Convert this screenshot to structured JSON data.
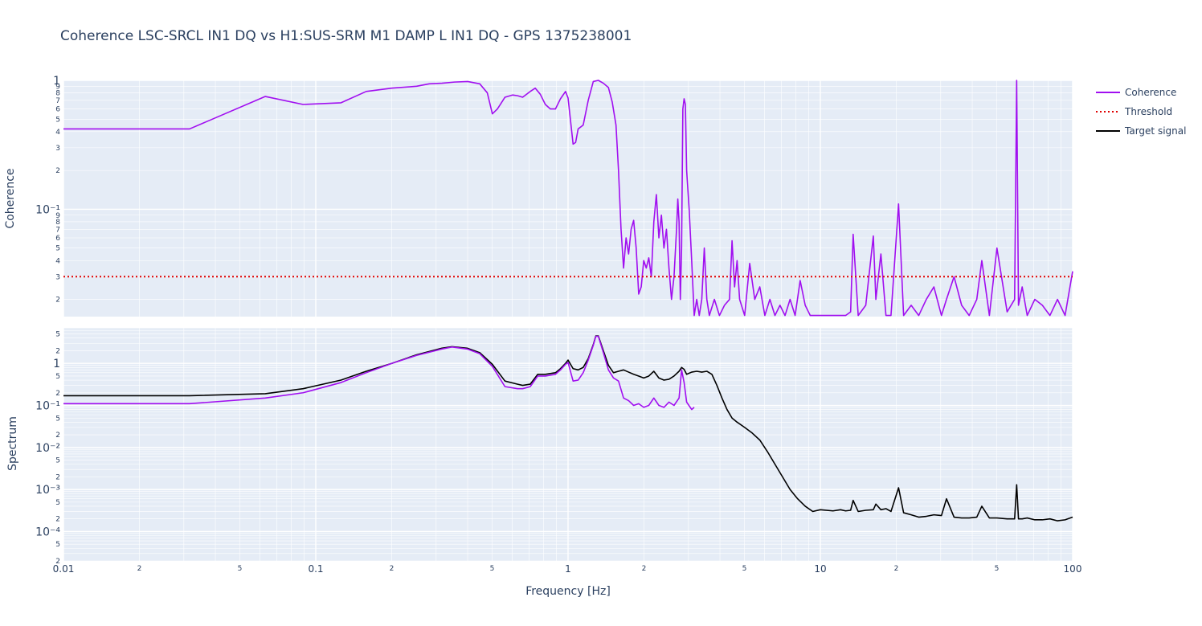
{
  "chart_data": {
    "type": "line",
    "title": "Coherence LSC-SRCL IN1 DQ vs H1:SUS-SRM M1 DAMP L IN1 DQ - GPS 1375238001",
    "xlabel": "Frequency [Hz]",
    "xscale": "log",
    "xlim": [
      0.01,
      100
    ],
    "x_ticks": [
      "0.01",
      "2",
      "5",
      "0.1",
      "2",
      "5",
      "1",
      "2",
      "5",
      "10",
      "2",
      "5",
      "100"
    ],
    "grid": true,
    "legend": {
      "position": "top-right",
      "entries": [
        {
          "name": "Coherence",
          "color": "#a10ff0",
          "style": "solid"
        },
        {
          "name": "Threshold",
          "color": "#e00000",
          "style": "dotted"
        },
        {
          "name": "Target signal",
          "color": "#000000",
          "style": "solid"
        }
      ]
    },
    "panels": [
      {
        "ylabel": "Coherence",
        "yscale": "log",
        "ylim": [
          0.0147,
          1.0
        ],
        "y_ticks": [
          "1",
          "9",
          "8",
          "7",
          "6",
          "5",
          "4",
          "3",
          "2",
          "10⁻¹",
          "9",
          "8",
          "7",
          "6",
          "5",
          "4",
          "3",
          "2"
        ],
        "series": [
          {
            "name": "Coherence",
            "color": "#a10ff0",
            "x": [
              0.01,
              0.0316,
              0.0631,
              0.0891,
              0.1259,
              0.1585,
              0.2,
              0.251,
              0.2818,
              0.3162,
              0.3548,
              0.4,
              0.4467,
              0.4786,
              0.5012,
              0.5248,
              0.5623,
              0.6026,
              0.631,
              0.6607,
              0.7079,
              0.7413,
              0.7762,
              0.8128,
              0.8511,
              0.8913,
              0.9333,
              0.9772,
              1.0,
              1.0471,
              1.0715,
              1.0965,
              1.1482,
              1.2023,
              1.2589,
              1.3183,
              1.3804,
              1.4454,
              1.4962,
              1.5488,
              1.5849,
              1.6218,
              1.6596,
              1.6982,
              1.7378,
              1.7783,
              1.8197,
              1.8621,
              1.9055,
              1.9498,
              1.9953,
              2.0417,
              2.0893,
              2.138,
              2.1878,
              2.2387,
              2.2909,
              2.3442,
              2.3988,
              2.4547,
              2.5119,
              2.5704,
              2.6303,
              2.6915,
              2.7227,
              2.7542,
              2.7861,
              2.8184,
              2.851,
              2.884,
              2.9174,
              2.9512,
              3.02,
              3.0903,
              3.1623,
              3.2359,
              3.3113,
              3.3884,
              3.4674,
              3.5481,
              3.6308,
              3.8019,
              3.9811,
              4.1687,
              4.3652,
              4.4668,
              4.5709,
              4.6774,
              4.7863,
              5.0119,
              5.2481,
              5.4954,
              5.7544,
              6.0256,
              6.3096,
              6.6069,
              6.9183,
              7.2444,
              7.5858,
              7.9433,
              8.3176,
              8.7096,
              9.1201,
              9.5499,
              10.0,
              11.2202,
              12.5893,
              13.1826,
              13.4896,
              14.1254,
              15.1356,
              16.2181,
              16.5959,
              17.378,
              18.197,
              19.0546,
              20.4174,
              21.3796,
              22.9087,
              24.5471,
              26.3027,
              28.1838,
              30.1995,
              31.6228,
              33.8844,
              36.3078,
              38.9045,
              41.6869,
              43.6516,
              46.7735,
              50.1187,
              55.0,
              58.8844,
              60.0,
              61.0,
              63.0957,
              66.0693,
              70.7946,
              75.8578,
              81.2831,
              87.0964,
              93.3254,
              100.0
            ],
            "y": [
              0.42,
              0.42,
              0.75,
              0.65,
              0.67,
              0.82,
              0.87,
              0.9,
              0.94,
              0.95,
              0.97,
              0.98,
              0.94,
              0.8,
              0.55,
              0.6,
              0.74,
              0.77,
              0.76,
              0.74,
              0.82,
              0.87,
              0.78,
              0.65,
              0.6,
              0.6,
              0.72,
              0.82,
              0.73,
              0.32,
              0.33,
              0.42,
              0.45,
              0.7,
              0.98,
              1.0,
              0.95,
              0.88,
              0.68,
              0.45,
              0.2,
              0.07,
              0.035,
              0.06,
              0.045,
              0.07,
              0.082,
              0.05,
              0.022,
              0.025,
              0.04,
              0.035,
              0.042,
              0.03,
              0.08,
              0.13,
              0.06,
              0.09,
              0.05,
              0.07,
              0.035,
              0.02,
              0.03,
              0.07,
              0.12,
              0.08,
              0.02,
              0.05,
              0.6,
              0.72,
              0.65,
              0.2,
              0.1,
              0.04,
              0.015,
              0.02,
              0.015,
              0.02,
              0.05,
              0.02,
              0.015,
              0.02,
              0.015,
              0.018,
              0.02,
              0.057,
              0.025,
              0.04,
              0.02,
              0.015,
              0.038,
              0.02,
              0.025,
              0.015,
              0.02,
              0.015,
              0.018,
              0.015,
              0.02,
              0.015,
              0.028,
              0.018,
              0.015,
              0.015,
              0.015,
              0.015,
              0.015,
              0.016,
              0.064,
              0.015,
              0.018,
              0.062,
              0.02,
              0.045,
              0.015,
              0.015,
              0.11,
              0.015,
              0.018,
              0.015,
              0.02,
              0.025,
              0.015,
              0.02,
              0.03,
              0.018,
              0.015,
              0.02,
              0.04,
              0.015,
              0.05,
              0.016,
              0.02,
              1.0,
              0.018,
              0.025,
              0.015,
              0.02,
              0.018,
              0.015,
              0.02,
              0.015,
              0.033
            ]
          },
          {
            "name": "Threshold",
            "color": "#e00000",
            "x": [
              0.01,
              100
            ],
            "y": [
              0.03,
              0.03
            ]
          }
        ]
      },
      {
        "ylabel": "Spectrum",
        "yscale": "log",
        "ylim": [
          2e-05,
          7
        ],
        "y_ticks": [
          "5",
          "2",
          "1",
          "5",
          "2",
          "10⁻¹",
          "5",
          "2",
          "10⁻²",
          "5",
          "2",
          "10⁻³",
          "5",
          "2",
          "10⁻⁴",
          "5",
          "2"
        ],
        "series": [
          {
            "name": "Target signal",
            "color": "#000000",
            "x": [
              0.01,
              0.0316,
              0.0631,
              0.0891,
              0.1259,
              0.1585,
              0.2,
              0.251,
              0.3162,
              0.3467,
              0.3981,
              0.4467,
              0.5012,
              0.5623,
              0.631,
              0.6607,
              0.7079,
              0.7586,
              0.8128,
              0.8913,
              0.9333,
              0.9772,
              1.0,
              1.0471,
              1.0965,
              1.1482,
              1.2023,
              1.2589,
              1.2882,
              1.3183,
              1.3804,
              1.4454,
              1.5136,
              1.5849,
              1.6596,
              1.7378,
              1.8197,
              1.9055,
              1.9953,
              2.0893,
              2.1878,
              2.2909,
              2.3988,
              2.5119,
              2.6303,
              2.7542,
              2.8184,
              2.884,
              2.9512,
              3.0903,
              3.2359,
              3.3884,
              3.5481,
              3.7154,
              3.8905,
              4.0738,
              4.2658,
              4.4668,
              4.6774,
              5.0119,
              5.3703,
              5.7544,
              6.166,
              6.6069,
              7.0795,
              7.5858,
              8.1283,
              8.7096,
              9.3325,
              10.0,
              11.2202,
              12.0226,
              12.5893,
              13.1826,
              13.4896,
              14.1254,
              15.1356,
              16.2181,
              16.5959,
              17.378,
              18.197,
              19.0546,
              20.4174,
              21.3796,
              22.9087,
              24.5471,
              26.3027,
              28.1838,
              30.1995,
              31.6228,
              33.8844,
              36.3078,
              38.9045,
              41.6869,
              43.6516,
              46.7735,
              50.1187,
              55.0,
              58.8844,
              60.0,
              61.0,
              63.0957,
              66.0693,
              70.7946,
              75.8578,
              81.2831,
              87.0964,
              93.3254,
              100.0
            ],
            "y": [
              0.17,
              0.17,
              0.19,
              0.25,
              0.4,
              0.65,
              1.0,
              1.6,
              2.3,
              2.5,
              2.3,
              1.8,
              0.95,
              0.38,
              0.32,
              0.3,
              0.32,
              0.55,
              0.55,
              0.6,
              0.75,
              1.0,
              1.2,
              0.75,
              0.7,
              0.8,
              1.3,
              2.8,
              4.5,
              4.5,
              2.0,
              0.9,
              0.6,
              0.65,
              0.7,
              0.62,
              0.55,
              0.5,
              0.45,
              0.5,
              0.65,
              0.45,
              0.4,
              0.42,
              0.5,
              0.65,
              0.8,
              0.72,
              0.55,
              0.62,
              0.65,
              0.62,
              0.65,
              0.55,
              0.3,
              0.15,
              0.08,
              0.05,
              0.04,
              0.03,
              0.022,
              0.015,
              0.008,
              0.004,
              0.002,
              0.001,
              0.0006,
              0.0004,
              0.0003,
              0.00033,
              0.00031,
              0.00033,
              0.00031,
              0.00032,
              0.00055,
              0.0003,
              0.00032,
              0.00033,
              0.00045,
              0.00033,
              0.00035,
              0.0003,
              0.0011,
              0.00028,
              0.00025,
              0.00022,
              0.00023,
              0.00025,
              0.00024,
              0.0006,
              0.00022,
              0.00021,
              0.00021,
              0.00022,
              0.0004,
              0.00021,
              0.00021,
              0.0002,
              0.0002,
              0.0013,
              0.0002,
              0.0002,
              0.00021,
              0.00019,
              0.00019,
              0.0002,
              0.00018,
              0.00019,
              0.00022
            ]
          },
          {
            "name": "Coherence",
            "color": "#a10ff0",
            "x": [
              0.01,
              0.0316,
              0.0631,
              0.0891,
              0.1259,
              0.1585,
              0.2,
              0.251,
              0.3162,
              0.3467,
              0.3981,
              0.4467,
              0.5012,
              0.5623,
              0.631,
              0.6607,
              0.7079,
              0.7586,
              0.8128,
              0.8913,
              0.9333,
              0.9772,
              1.0,
              1.0471,
              1.0965,
              1.1482,
              1.2023,
              1.2589,
              1.2882,
              1.3183,
              1.3804,
              1.4454,
              1.5136,
              1.5849,
              1.6596,
              1.7378,
              1.8197,
              1.9055,
              1.9953,
              2.0893,
              2.1878,
              2.2909,
              2.3988,
              2.5119,
              2.6303,
              2.7542,
              2.8184,
              2.884,
              2.9512,
              3.0903,
              3.1623
            ],
            "y": [
              0.11,
              0.11,
              0.15,
              0.2,
              0.35,
              0.6,
              1.0,
              1.55,
              2.2,
              2.45,
              2.2,
              1.7,
              0.85,
              0.28,
              0.25,
              0.25,
              0.28,
              0.5,
              0.5,
              0.55,
              0.7,
              0.95,
              1.05,
              0.38,
              0.4,
              0.6,
              1.2,
              2.7,
              4.4,
              4.4,
              1.8,
              0.7,
              0.45,
              0.38,
              0.15,
              0.13,
              0.1,
              0.11,
              0.09,
              0.1,
              0.15,
              0.1,
              0.09,
              0.12,
              0.1,
              0.15,
              0.7,
              0.35,
              0.12,
              0.08,
              0.09
            ]
          }
        ]
      }
    ]
  }
}
